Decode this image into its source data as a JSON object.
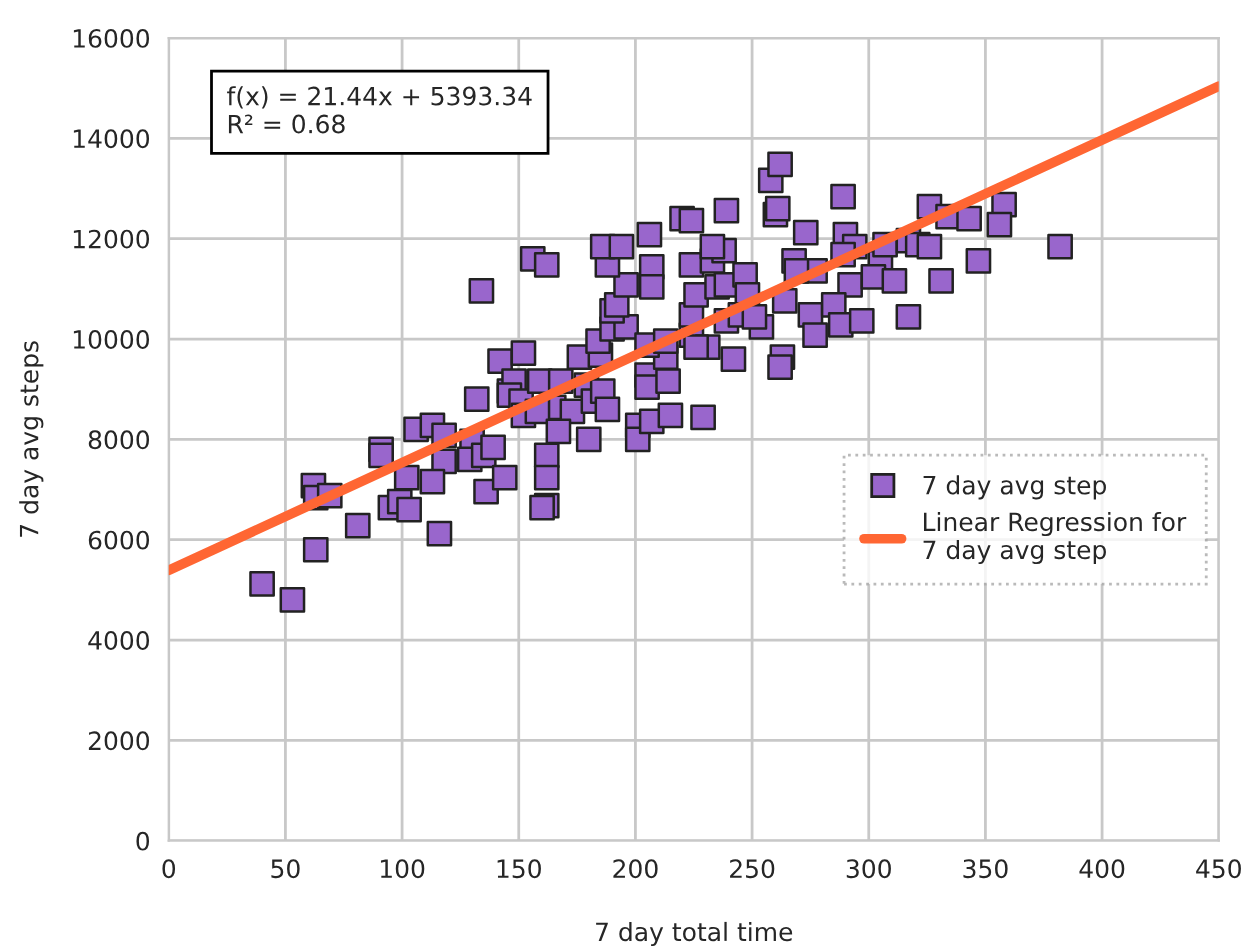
{
  "chart_data": {
    "type": "scatter",
    "xlabel": "7 day total time",
    "ylabel": "7 day avg steps",
    "xlim": [
      0,
      450
    ],
    "xticks": [
      0,
      50,
      100,
      150,
      200,
      250,
      300,
      350,
      400,
      450
    ],
    "ylim": [
      0,
      16000
    ],
    "yticks": [
      0,
      2000,
      4000,
      6000,
      8000,
      10000,
      12000,
      14000,
      16000
    ],
    "grid": true,
    "legend": "right",
    "annotations": [
      "f(x) = 21.44x + 5393.34\nR² = 0.68"
    ],
    "series": [
      {
        "name": "7 day avg step",
        "marker": "square",
        "color": "#9966cc",
        "x": [
          40,
          53,
          63,
          62,
          63,
          69,
          81,
          91,
          91,
          95,
          99,
          103,
          102,
          106,
          113,
          118,
          118,
          113,
          116,
          132,
          134,
          130,
          129,
          135,
          139,
          136,
          144,
          142,
          146,
          152,
          148,
          146,
          151,
          152,
          159,
          168,
          165,
          158,
          173,
          176,
          179,
          182,
          186,
          188,
          185,
          184,
          190,
          196,
          190,
          192,
          196,
          188,
          186,
          194,
          206,
          207,
          207,
          156,
          162,
          167,
          180,
          162,
          162,
          162,
          160,
          201,
          201,
          207,
          215,
          229,
          205,
          205,
          214,
          213,
          205,
          213,
          224,
          231,
          226,
          242,
          224,
          226,
          224,
          233,
          238,
          233,
          239,
          220,
          224,
          235,
          239,
          247,
          248,
          239,
          245,
          254,
          251,
          258,
          262,
          260,
          261,
          263,
          289,
          273,
          290,
          294,
          289,
          268,
          277,
          269,
          292,
          305,
          307,
          302,
          311,
          317,
          321,
          326,
          326,
          334,
          343,
          358,
          356,
          347,
          331,
          264,
          275,
          285,
          277,
          288,
          297,
          317,
          262,
          382
        ],
        "values": [
          5120,
          4800,
          5800,
          7080,
          6840,
          6880,
          6280,
          7800,
          7680,
          6640,
          6760,
          6600,
          7240,
          8200,
          8280,
          8080,
          7560,
          7160,
          6120,
          8800,
          10960,
          7960,
          7600,
          7680,
          7840,
          6960,
          7240,
          9560,
          8960,
          9720,
          9160,
          8880,
          8760,
          8480,
          9160,
          9160,
          8640,
          8560,
          8560,
          9640,
          9080,
          8760,
          8960,
          8600,
          9680,
          9960,
          10200,
          10240,
          10560,
          10680,
          11080,
          11480,
          11840,
          11840,
          12080,
          11440,
          11040,
          11600,
          11480,
          8160,
          8000,
          7680,
          7240,
          6680,
          6640,
          8280,
          8000,
          8360,
          8480,
          8440,
          9280,
          9040,
          9160,
          9640,
          9880,
          9960,
          10080,
          9840,
          9840,
          9600,
          10480,
          10880,
          11480,
          11560,
          11760,
          11840,
          12560,
          12400,
          12360,
          11040,
          11080,
          11280,
          10880,
          10360,
          10480,
          10240,
          10440,
          13160,
          13480,
          12480,
          12600,
          9640,
          12840,
          12120,
          12080,
          11840,
          11680,
          11560,
          11360,
          11360,
          11080,
          11520,
          11880,
          11240,
          11160,
          11960,
          11880,
          11840,
          12640,
          12440,
          12400,
          12680,
          12280,
          11560,
          11160,
          10760,
          10480,
          10680,
          10080,
          10280,
          10360,
          10440,
          9440,
          11840
        ]
      },
      {
        "name": "Linear Regression for\n7 day avg step",
        "type": "line",
        "marker": "none",
        "color": "#ff6633",
        "x": [
          0,
          450
        ],
        "values": [
          5390,
          15040
        ]
      }
    ]
  }
}
